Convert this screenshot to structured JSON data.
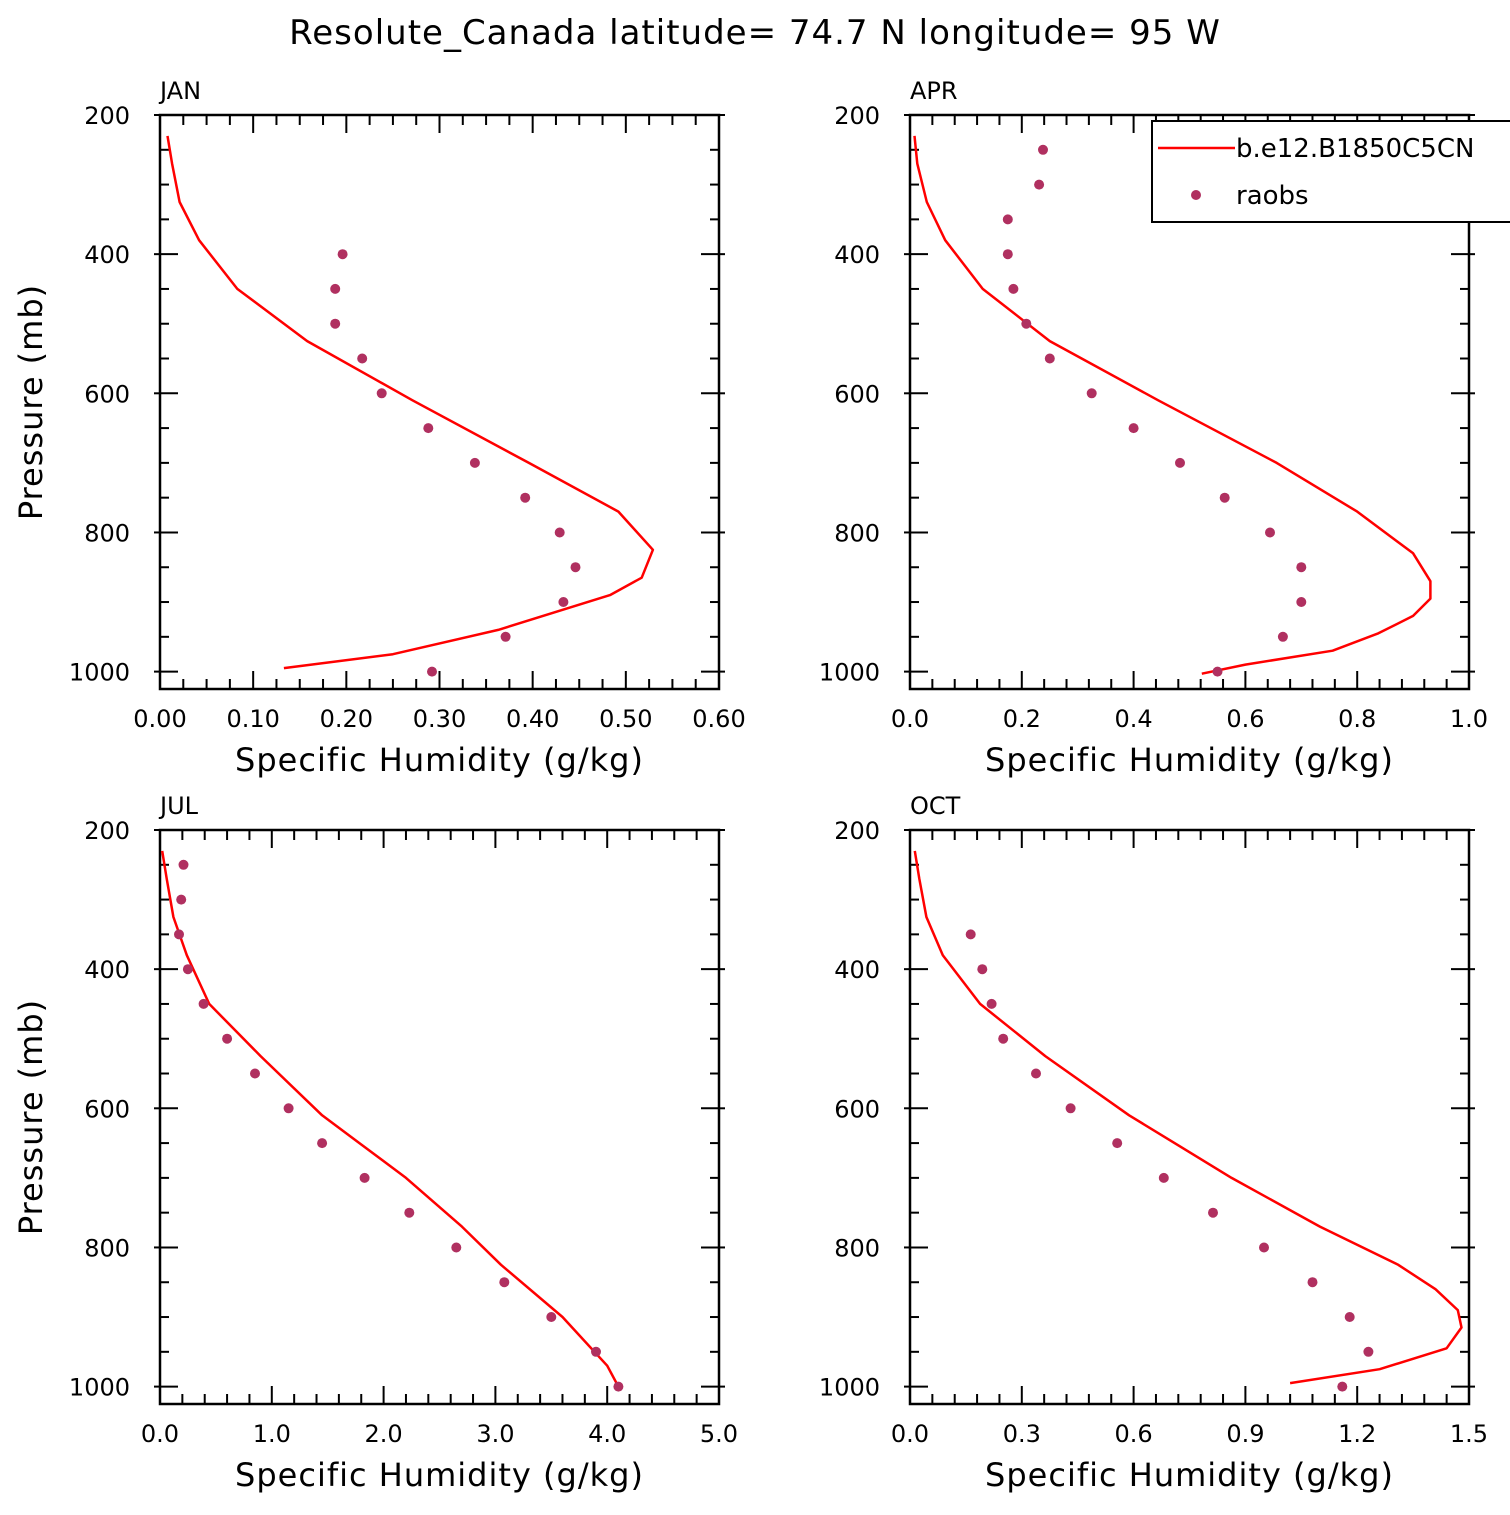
{
  "figure": {
    "title": "Resolute_Canada  latitude= 74.7 N longitude= 95 W"
  },
  "colors": {
    "model": "#ff0000",
    "obs": "#b03060",
    "axis": "#000000"
  },
  "legend": {
    "placement": "top-right of APR panel",
    "model_label": "b.e12.B1850C5CN",
    "obs_label": "raobs"
  },
  "chart_data": [
    {
      "type": "line",
      "title": "JAN",
      "xlabel": "Specific Humidity (g/kg)",
      "ylabel": "Pressure (mb)",
      "xlim": [
        0,
        0.6
      ],
      "ylim": [
        1025,
        200
      ],
      "x_ticks": [
        "0.00",
        "0.10",
        "0.20",
        "0.30",
        "0.40",
        "0.50",
        "0.60"
      ],
      "y_ticks": [
        "200",
        "400",
        "600",
        "800",
        "1000"
      ],
      "series": [
        {
          "name": "b.e12.B1850C5CN",
          "kind": "line",
          "points": [
            [
              0.008,
              230
            ],
            [
              0.013,
              270
            ],
            [
              0.021,
              325
            ],
            [
              0.042,
              380
            ],
            [
              0.083,
              450
            ],
            [
              0.158,
              525
            ],
            [
              0.271,
              610
            ],
            [
              0.396,
              700
            ],
            [
              0.492,
              770
            ],
            [
              0.529,
              825
            ],
            [
              0.517,
              865
            ],
            [
              0.483,
              890
            ],
            [
              0.363,
              940
            ],
            [
              0.25,
              975
            ],
            [
              0.133,
              995
            ]
          ]
        },
        {
          "name": "raobs",
          "kind": "scatter",
          "points": [
            [
              0.196,
              400
            ],
            [
              0.188,
              450
            ],
            [
              0.188,
              500
            ],
            [
              0.217,
              550
            ],
            [
              0.238,
              600
            ],
            [
              0.288,
              650
            ],
            [
              0.338,
              700
            ],
            [
              0.392,
              750
            ],
            [
              0.429,
              800
            ],
            [
              0.446,
              850
            ],
            [
              0.433,
              900
            ],
            [
              0.371,
              950
            ],
            [
              0.292,
              1000
            ]
          ]
        }
      ]
    },
    {
      "type": "line",
      "title": "APR",
      "xlabel": "Specific Humidity (g/kg)",
      "ylabel": "",
      "xlim": [
        0,
        1.0
      ],
      "ylim": [
        1025,
        200
      ],
      "x_ticks": [
        "0.0",
        "0.2",
        "0.4",
        "0.6",
        "0.8",
        "1.0"
      ],
      "y_ticks": [
        "200",
        "400",
        "600",
        "800",
        "1000"
      ],
      "series": [
        {
          "name": "b.e12.B1850C5CN",
          "kind": "line",
          "points": [
            [
              0.008,
              230
            ],
            [
              0.013,
              270
            ],
            [
              0.03,
              325
            ],
            [
              0.063,
              380
            ],
            [
              0.13,
              450
            ],
            [
              0.25,
              525
            ],
            [
              0.444,
              610
            ],
            [
              0.656,
              700
            ],
            [
              0.8,
              770
            ],
            [
              0.9,
              830
            ],
            [
              0.931,
              870
            ],
            [
              0.931,
              895
            ],
            [
              0.9,
              920
            ],
            [
              0.838,
              945
            ],
            [
              0.756,
              970
            ],
            [
              0.6,
              990
            ],
            [
              0.522,
              1003
            ]
          ]
        },
        {
          "name": "raobs",
          "kind": "scatter",
          "points": [
            [
              0.238,
              250
            ],
            [
              0.231,
              300
            ],
            [
              0.175,
              350
            ],
            [
              0.175,
              400
            ],
            [
              0.185,
              450
            ],
            [
              0.208,
              500
            ],
            [
              0.25,
              550
            ],
            [
              0.325,
              600
            ],
            [
              0.4,
              650
            ],
            [
              0.483,
              700
            ],
            [
              0.563,
              750
            ],
            [
              0.644,
              800
            ],
            [
              0.7,
              850
            ],
            [
              0.7,
              900
            ],
            [
              0.667,
              950
            ],
            [
              0.55,
              1000
            ]
          ]
        }
      ]
    },
    {
      "type": "line",
      "title": "JUL",
      "xlabel": "Specific Humidity (g/kg)",
      "ylabel": "Pressure (mb)",
      "xlim": [
        0,
        5.0
      ],
      "ylim": [
        1025,
        200
      ],
      "x_ticks": [
        "0.0",
        "1.0",
        "2.0",
        "3.0",
        "4.0",
        "5.0"
      ],
      "y_ticks": [
        "200",
        "400",
        "600",
        "800",
        "1000"
      ],
      "series": [
        {
          "name": "b.e12.B1850C5CN",
          "kind": "line",
          "points": [
            [
              0.02,
              230
            ],
            [
              0.06,
              270
            ],
            [
              0.12,
              325
            ],
            [
              0.24,
              380
            ],
            [
              0.44,
              450
            ],
            [
              0.9,
              525
            ],
            [
              1.45,
              610
            ],
            [
              2.2,
              700
            ],
            [
              2.7,
              770
            ],
            [
              3.05,
              825
            ],
            [
              3.6,
              900
            ],
            [
              4.0,
              970
            ],
            [
              4.1,
              1000
            ]
          ]
        },
        {
          "name": "raobs",
          "kind": "scatter",
          "points": [
            [
              0.21,
              250
            ],
            [
              0.19,
              300
            ],
            [
              0.17,
              350
            ],
            [
              0.25,
              400
            ],
            [
              0.39,
              450
            ],
            [
              0.6,
              500
            ],
            [
              0.85,
              550
            ],
            [
              1.15,
              600
            ],
            [
              1.45,
              650
            ],
            [
              1.83,
              700
            ],
            [
              2.23,
              750
            ],
            [
              2.65,
              800
            ],
            [
              3.08,
              850
            ],
            [
              3.5,
              900
            ],
            [
              3.9,
              950
            ],
            [
              4.1,
              1000
            ]
          ]
        }
      ]
    },
    {
      "type": "line",
      "title": "OCT",
      "xlabel": "Specific Humidity (g/kg)",
      "ylabel": "",
      "xlim": [
        0,
        1.5
      ],
      "ylim": [
        1025,
        200
      ],
      "x_ticks": [
        "0.0",
        "0.3",
        "0.6",
        "0.9",
        "1.2",
        "1.5"
      ],
      "y_ticks": [
        "200",
        "400",
        "600",
        "800",
        "1000"
      ],
      "series": [
        {
          "name": "b.e12.B1850C5CN",
          "kind": "line",
          "points": [
            [
              0.013,
              230
            ],
            [
              0.025,
              270
            ],
            [
              0.044,
              325
            ],
            [
              0.088,
              380
            ],
            [
              0.188,
              450
            ],
            [
              0.363,
              525
            ],
            [
              0.588,
              610
            ],
            [
              0.863,
              700
            ],
            [
              1.1,
              770
            ],
            [
              1.31,
              825
            ],
            [
              1.41,
              860
            ],
            [
              1.47,
              890
            ],
            [
              1.48,
              915
            ],
            [
              1.44,
              945
            ],
            [
              1.26,
              975
            ],
            [
              1.02,
              995
            ]
          ]
        },
        {
          "name": "raobs",
          "kind": "scatter",
          "points": [
            [
              0.163,
              350
            ],
            [
              0.194,
              400
            ],
            [
              0.219,
              450
            ],
            [
              0.25,
              500
            ],
            [
              0.338,
              550
            ],
            [
              0.431,
              600
            ],
            [
              0.556,
              650
            ],
            [
              0.681,
              700
            ],
            [
              0.813,
              750
            ],
            [
              0.95,
              800
            ],
            [
              1.08,
              850
            ],
            [
              1.18,
              900
            ],
            [
              1.23,
              950
            ],
            [
              1.16,
              1000
            ]
          ]
        }
      ]
    }
  ]
}
